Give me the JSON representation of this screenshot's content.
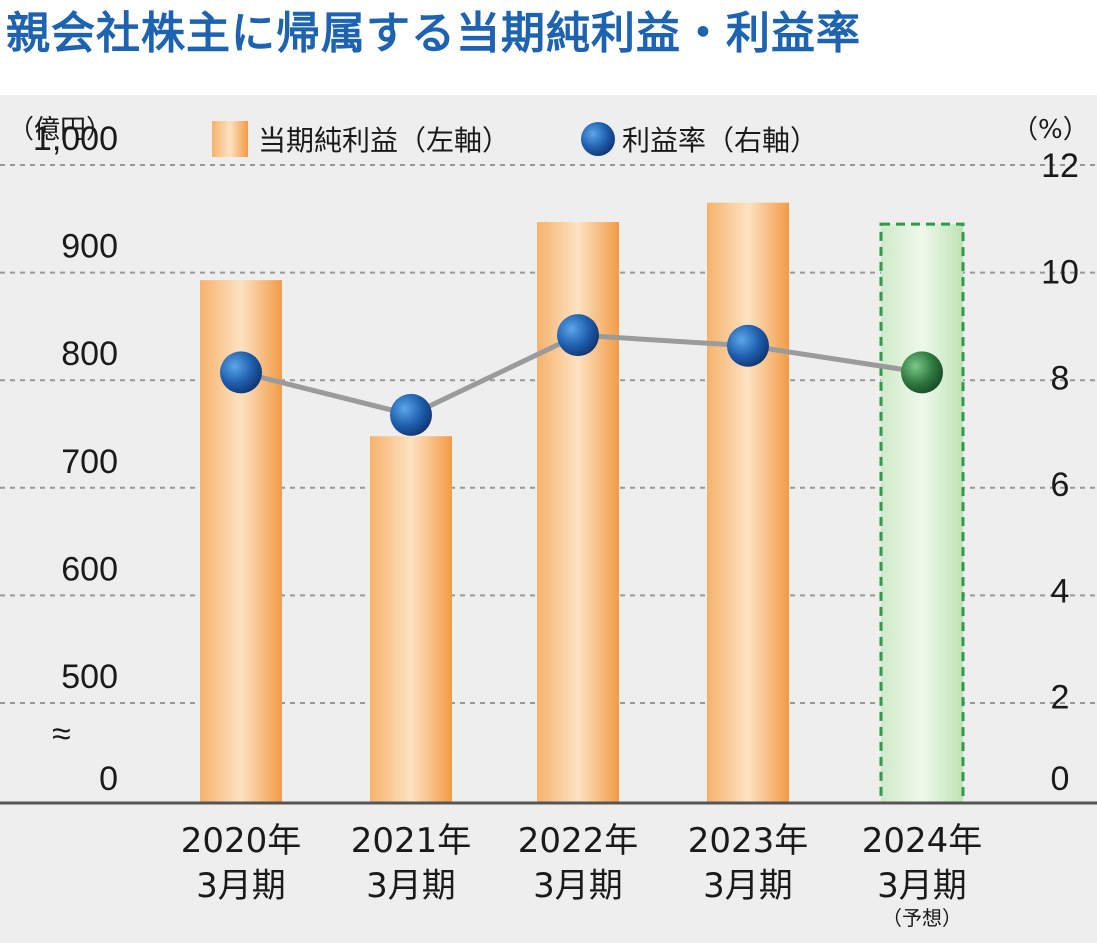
{
  "title": "親会社株主に帰属する当期純利益・利益率",
  "colors": {
    "title": "#1d63b0",
    "bar": "#f4a04e",
    "forecast_bar": "#c7e8c0",
    "forecast_border": "#2f9a4a",
    "marker": "#1f5fae",
    "forecast_marker": "#2f7a3e",
    "line": "#9b9b9b",
    "grid": "#999999"
  },
  "chart_data": {
    "type": "bar",
    "categories": [
      {
        "line1": "2020年",
        "line2": "3月期",
        "note": ""
      },
      {
        "line1": "2021年",
        "line2": "3月期",
        "note": ""
      },
      {
        "line1": "2022年",
        "line2": "3月期",
        "note": ""
      },
      {
        "line1": "2023年",
        "line2": "3月期",
        "note": ""
      },
      {
        "line1": "2024年",
        "line2": "3月期",
        "note": "（予想）"
      }
    ],
    "left_axis": {
      "unit_label": "（億円）",
      "ticks": [
        "0",
        "500",
        "600",
        "700",
        "800",
        "900",
        "1,000"
      ],
      "ylim": [
        500,
        1000
      ],
      "axis_break": true,
      "break_symbol": "≈"
    },
    "right_axis": {
      "unit_label": "（%）",
      "ticks": [
        "0",
        "2",
        "4",
        "6",
        "8",
        "10",
        "12"
      ],
      "ylim": [
        0,
        12
      ]
    },
    "series": [
      {
        "name": "当期純利益（左軸）",
        "type": "bar",
        "axis": "left",
        "values": [
          893,
          748,
          947,
          965,
          945
        ]
      },
      {
        "name": "利益率（右軸）",
        "type": "line",
        "axis": "right",
        "values": [
          8.1,
          7.3,
          8.8,
          8.6,
          8.1
        ]
      }
    ],
    "forecast_index": 4,
    "grid": true,
    "legend_position": "top"
  }
}
